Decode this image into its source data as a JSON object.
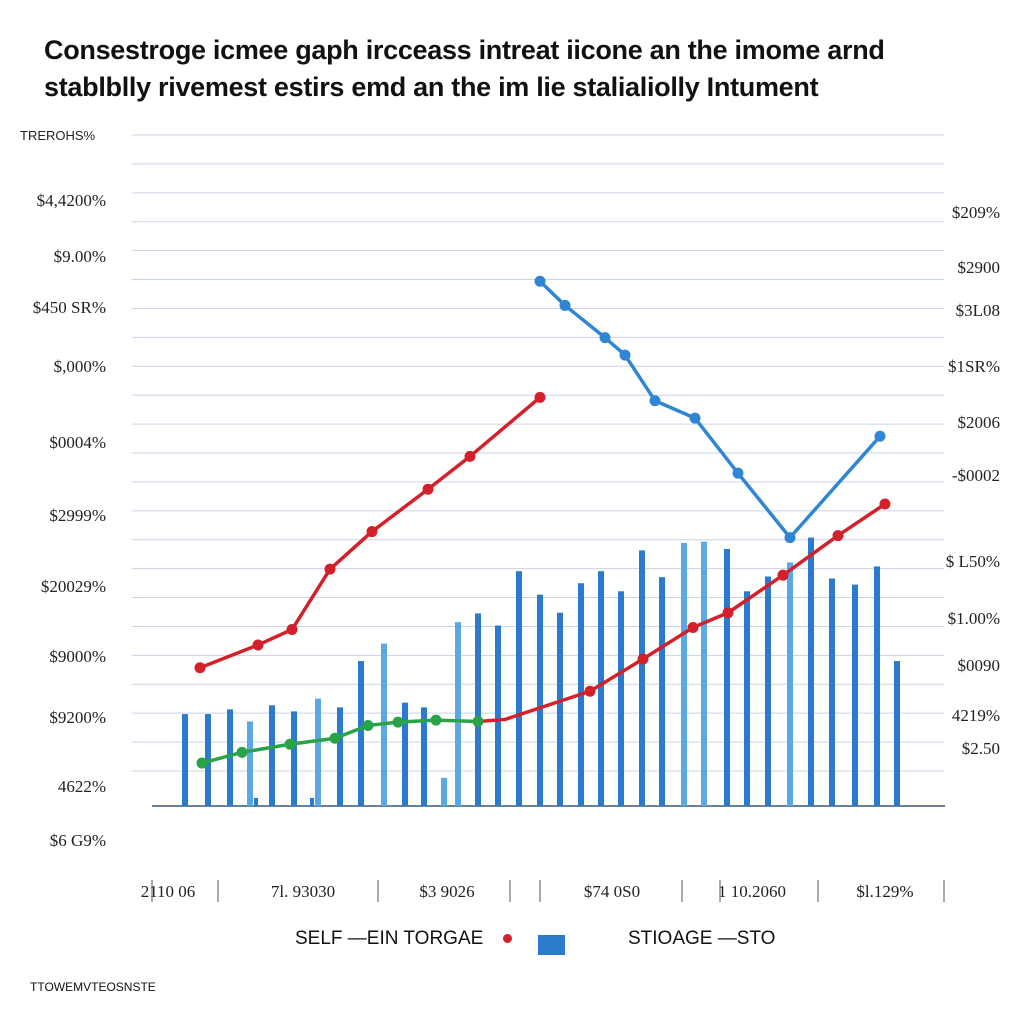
{
  "chart_data": {
    "type": "line+bar",
    "title_lines": [
      "Consestroge icmee gaph ircceass intreat iicone an the  imome  arnd",
      "stablblly rivemest estirs emd an the im lie stalialiolly Intument"
    ],
    "ylabel": "TREROHS%",
    "left_ticks": [
      "$4,4200%",
      "$9.00%",
      "$450 SR%",
      "$,000%",
      "$0004%",
      "$2999%",
      "$20029%",
      "$9000%",
      "$9200%",
      "4622%",
      "$6 G9%"
    ],
    "right_ticks": [
      "$209%",
      "$2900",
      "$3L08",
      "$1SR%",
      "$2006",
      "-$0002",
      "$ L50%",
      "$1.00%",
      "$0090",
      "4219%",
      "$2.50"
    ],
    "x_ticks": [
      "2110 06",
      "7l. 93030",
      "$3 9026",
      "$74 0S0",
      "1 10.2060",
      "$l.129%"
    ],
    "left_ylim": [
      0,
      100
    ],
    "colors": {
      "blue": "#2e86d4",
      "red": "#d3202a",
      "green": "#2aa348",
      "bar": "#2a7bcc",
      "bar_light": "#5aa8e6"
    },
    "series": [
      {
        "color": "blue",
        "x": [
          540,
          565,
          605,
          625,
          655,
          695,
          738,
          790,
          880
        ],
        "values": [
          78.2,
          74.6,
          69.8,
          67.2,
          60.4,
          57.8,
          49.6,
          40.0,
          55.1
        ]
      },
      {
        "color": "red",
        "x": [
          200,
          258,
          292,
          330,
          372,
          428,
          470,
          540,
          590,
          643,
          693,
          728,
          783,
          838,
          885
        ],
        "values": [
          20.6,
          24.0,
          26.3,
          35.3,
          40.9,
          47.2,
          52.1,
          60.9,
          17.1,
          21.9,
          26.6,
          28.8,
          34.4,
          40.3,
          45.0
        ]
      },
      {
        "color": "green",
        "x": [
          202,
          242,
          290,
          335,
          368,
          398,
          436,
          478
        ],
        "values": [
          6.4,
          8.0,
          9.2,
          10.1,
          12.0,
          12.5,
          12.8,
          12.6
        ]
      }
    ],
    "bars": {
      "x": [
        185,
        208,
        230,
        250,
        272,
        294,
        318,
        340,
        361,
        384,
        405,
        424,
        444,
        458,
        478,
        498,
        519,
        540,
        560,
        581,
        601,
        621,
        642,
        662,
        684,
        704,
        727,
        747,
        768,
        790,
        811,
        832,
        855,
        877,
        897
      ],
      "values": [
        13.7,
        13.7,
        14.4,
        12.6,
        15.0,
        14.1,
        16.0,
        14.7,
        21.6,
        24.2,
        15.4,
        14.7,
        4.2,
        27.4,
        28.7,
        26.9,
        35.0,
        31.5,
        28.8,
        33.2,
        35.0,
        32.0,
        38.1,
        34.1,
        39.2,
        39.4,
        38.3,
        32.0,
        34.2,
        36.3,
        40.0,
        33.9,
        33.0,
        35.7,
        21.6
      ],
      "light": [
        false,
        false,
        false,
        true,
        false,
        false,
        true,
        false,
        false,
        true,
        false,
        false,
        true,
        true,
        false,
        false,
        false,
        false,
        false,
        false,
        false,
        false,
        false,
        false,
        true,
        true,
        false,
        false,
        false,
        true,
        false,
        false,
        false,
        false,
        false
      ]
    },
    "legend": {
      "item1": "SELF —EIN TORGAE",
      "item2": "STIOAGE —STO"
    },
    "footer": "TTOWEMVTEOSNSTE",
    "grid": true
  }
}
